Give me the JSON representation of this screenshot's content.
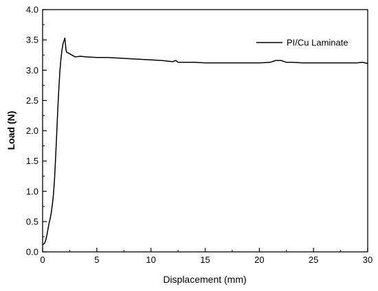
{
  "chart_data": {
    "type": "line",
    "title": "",
    "xlabel": "Displacement (mm)",
    "ylabel": "Load (N)",
    "xlim": [
      0,
      30
    ],
    "ylim": [
      0,
      4.0
    ],
    "x_ticks": [
      0,
      5,
      10,
      15,
      20,
      25,
      30
    ],
    "x_tick_labels": [
      "0",
      "5",
      "10",
      "15",
      "20",
      "25",
      "30"
    ],
    "y_ticks": [
      0,
      0.5,
      1.0,
      1.5,
      2.0,
      2.5,
      3.0,
      3.5,
      4.0
    ],
    "y_tick_labels": [
      "0.0",
      "0.5",
      "1.0",
      "1.5",
      "2.0",
      "2.5",
      "3.0",
      "3.5",
      "4.0"
    ],
    "grid": false,
    "legend_position": "top-right",
    "line_color": "#000000",
    "series": [
      {
        "name": "PI/Cu Laminate",
        "x": [
          0,
          0.1,
          0.2,
          0.3,
          0.4,
          0.5,
          0.6,
          0.7,
          0.8,
          0.9,
          1.0,
          1.1,
          1.2,
          1.3,
          1.4,
          1.5,
          1.6,
          1.7,
          1.8,
          1.9,
          2.0,
          2.05,
          2.1,
          2.15,
          2.2,
          2.3,
          2.4,
          2.5,
          2.7,
          3.0,
          3.5,
          4.0,
          5.0,
          6.0,
          7.0,
          8.0,
          9.0,
          10.0,
          11.0,
          12.0,
          12.3,
          12.5,
          13.0,
          14.0,
          15.0,
          16.0,
          17.0,
          18.0,
          19.0,
          20.0,
          21.0,
          21.5,
          22.0,
          22.5,
          23.0,
          24.0,
          25.0,
          26.0,
          27.0,
          28.0,
          29.0,
          29.5,
          30.0
        ],
        "y": [
          0.12,
          0.13,
          0.15,
          0.2,
          0.28,
          0.38,
          0.48,
          0.55,
          0.65,
          0.78,
          0.95,
          1.2,
          1.55,
          1.95,
          2.35,
          2.7,
          3.0,
          3.2,
          3.35,
          3.45,
          3.5,
          3.53,
          3.45,
          3.35,
          3.3,
          3.29,
          3.28,
          3.27,
          3.25,
          3.22,
          3.23,
          3.22,
          3.21,
          3.21,
          3.2,
          3.19,
          3.18,
          3.17,
          3.16,
          3.14,
          3.16,
          3.13,
          3.13,
          3.13,
          3.12,
          3.12,
          3.12,
          3.12,
          3.12,
          3.12,
          3.13,
          3.16,
          3.16,
          3.13,
          3.13,
          3.12,
          3.12,
          3.12,
          3.12,
          3.12,
          3.12,
          3.13,
          3.11
        ]
      }
    ]
  }
}
